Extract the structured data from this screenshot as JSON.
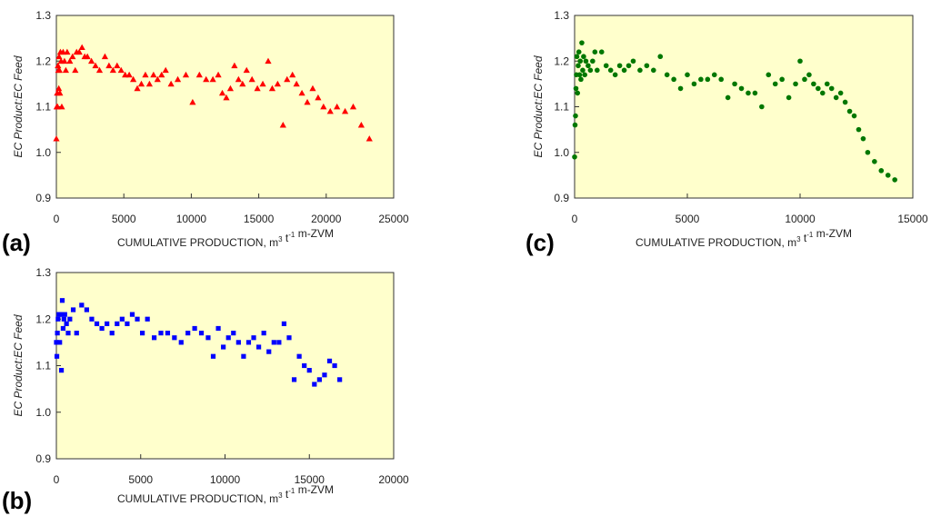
{
  "colors": {
    "plot_bg": "#ffffcc",
    "axis": "#333333"
  },
  "chart_data": [
    {
      "id": "a",
      "type": "scatter",
      "panel_label": "(a)",
      "xlabel": "CUMULATIVE PRODUCTION, m",
      "xlabel_sup1": "3",
      "xlabel_mid": " t",
      "xlabel_sup2": "-1",
      "xlabel_end": " m-ZVM",
      "ylabel": "EC Product:EC Feed",
      "xlim": [
        0,
        25000
      ],
      "ylim": [
        0.9,
        1.3
      ],
      "xticks": [
        0,
        5000,
        10000,
        15000,
        20000,
        25000
      ],
      "yticks": [
        0.9,
        1.0,
        1.1,
        1.2,
        1.3
      ],
      "marker": "triangle",
      "color": "#ff0000",
      "points": [
        [
          0,
          1.03
        ],
        [
          30,
          1.1
        ],
        [
          60,
          1.13
        ],
        [
          90,
          1.1
        ],
        [
          120,
          1.19
        ],
        [
          150,
          1.18
        ],
        [
          180,
          1.14
        ],
        [
          200,
          1.21
        ],
        [
          230,
          1.18
        ],
        [
          260,
          1.13
        ],
        [
          300,
          1.22
        ],
        [
          350,
          1.2
        ],
        [
          400,
          1.1
        ],
        [
          500,
          1.22
        ],
        [
          600,
          1.2
        ],
        [
          700,
          1.18
        ],
        [
          800,
          1.22
        ],
        [
          1000,
          1.2
        ],
        [
          1200,
          1.21
        ],
        [
          1400,
          1.18
        ],
        [
          1500,
          1.22
        ],
        [
          1700,
          1.22
        ],
        [
          1900,
          1.23
        ],
        [
          2100,
          1.21
        ],
        [
          2300,
          1.21
        ],
        [
          2600,
          1.2
        ],
        [
          2900,
          1.19
        ],
        [
          3200,
          1.18
        ],
        [
          3600,
          1.21
        ],
        [
          3900,
          1.19
        ],
        [
          4200,
          1.18
        ],
        [
          4500,
          1.19
        ],
        [
          4800,
          1.18
        ],
        [
          5100,
          1.17
        ],
        [
          5400,
          1.17
        ],
        [
          5700,
          1.16
        ],
        [
          6000,
          1.14
        ],
        [
          6300,
          1.15
        ],
        [
          6600,
          1.17
        ],
        [
          6900,
          1.15
        ],
        [
          7200,
          1.17
        ],
        [
          7500,
          1.16
        ],
        [
          7800,
          1.17
        ],
        [
          8100,
          1.18
        ],
        [
          8500,
          1.15
        ],
        [
          9000,
          1.16
        ],
        [
          9600,
          1.17
        ],
        [
          10100,
          1.11
        ],
        [
          10600,
          1.17
        ],
        [
          11100,
          1.16
        ],
        [
          11600,
          1.16
        ],
        [
          12000,
          1.17
        ],
        [
          12300,
          1.13
        ],
        [
          12600,
          1.12
        ],
        [
          12900,
          1.14
        ],
        [
          13200,
          1.19
        ],
        [
          13500,
          1.16
        ],
        [
          13800,
          1.15
        ],
        [
          14100,
          1.18
        ],
        [
          14500,
          1.16
        ],
        [
          14900,
          1.14
        ],
        [
          15300,
          1.15
        ],
        [
          15700,
          1.2
        ],
        [
          16000,
          1.14
        ],
        [
          16400,
          1.15
        ],
        [
          16800,
          1.06
        ],
        [
          17100,
          1.16
        ],
        [
          17500,
          1.17
        ],
        [
          17800,
          1.15
        ],
        [
          18200,
          1.13
        ],
        [
          18600,
          1.11
        ],
        [
          19000,
          1.14
        ],
        [
          19400,
          1.12
        ],
        [
          19800,
          1.1
        ],
        [
          20300,
          1.09
        ],
        [
          20800,
          1.1
        ],
        [
          21400,
          1.09
        ],
        [
          22000,
          1.1
        ],
        [
          22600,
          1.06
        ],
        [
          23200,
          1.03
        ]
      ]
    },
    {
      "id": "b",
      "type": "scatter",
      "panel_label": "(b)",
      "xlabel": "CUMULATIVE PRODUCTION, m",
      "xlabel_sup1": "3",
      "xlabel_mid": " t",
      "xlabel_sup2": "-1",
      "xlabel_end": " m-ZVM",
      "ylabel": "EC Product:EC Feed",
      "xlim": [
        0,
        20000
      ],
      "ylim": [
        0.9,
        1.3
      ],
      "xticks": [
        0,
        5000,
        10000,
        15000,
        20000
      ],
      "yticks": [
        0.9,
        1.0,
        1.1,
        1.2,
        1.3
      ],
      "marker": "square",
      "color": "#0000ff",
      "points": [
        [
          0,
          1.15
        ],
        [
          30,
          1.12
        ],
        [
          60,
          1.17
        ],
        [
          100,
          1.2
        ],
        [
          150,
          1.21
        ],
        [
          200,
          1.15
        ],
        [
          250,
          1.21
        ],
        [
          300,
          1.09
        ],
        [
          350,
          1.24
        ],
        [
          400,
          1.18
        ],
        [
          450,
          1.2
        ],
        [
          500,
          1.21
        ],
        [
          600,
          1.19
        ],
        [
          700,
          1.17
        ],
        [
          800,
          1.2
        ],
        [
          1000,
          1.22
        ],
        [
          1200,
          1.17
        ],
        [
          1500,
          1.23
        ],
        [
          1800,
          1.22
        ],
        [
          2100,
          1.2
        ],
        [
          2400,
          1.19
        ],
        [
          2700,
          1.18
        ],
        [
          3000,
          1.19
        ],
        [
          3300,
          1.17
        ],
        [
          3600,
          1.19
        ],
        [
          3900,
          1.2
        ],
        [
          4200,
          1.19
        ],
        [
          4500,
          1.21
        ],
        [
          4800,
          1.2
        ],
        [
          5100,
          1.17
        ],
        [
          5400,
          1.2
        ],
        [
          5800,
          1.16
        ],
        [
          6200,
          1.17
        ],
        [
          6600,
          1.17
        ],
        [
          7000,
          1.16
        ],
        [
          7400,
          1.15
        ],
        [
          7800,
          1.17
        ],
        [
          8200,
          1.18
        ],
        [
          8600,
          1.17
        ],
        [
          9000,
          1.16
        ],
        [
          9300,
          1.12
        ],
        [
          9600,
          1.18
        ],
        [
          9900,
          1.14
        ],
        [
          10200,
          1.16
        ],
        [
          10500,
          1.17
        ],
        [
          10800,
          1.15
        ],
        [
          11100,
          1.12
        ],
        [
          11400,
          1.15
        ],
        [
          11700,
          1.16
        ],
        [
          12000,
          1.14
        ],
        [
          12300,
          1.17
        ],
        [
          12600,
          1.13
        ],
        [
          12900,
          1.15
        ],
        [
          13200,
          1.15
        ],
        [
          13500,
          1.19
        ],
        [
          13800,
          1.16
        ],
        [
          14100,
          1.07
        ],
        [
          14400,
          1.12
        ],
        [
          14700,
          1.1
        ],
        [
          15000,
          1.09
        ],
        [
          15300,
          1.06
        ],
        [
          15600,
          1.07
        ],
        [
          15900,
          1.08
        ],
        [
          16200,
          1.11
        ],
        [
          16500,
          1.1
        ],
        [
          16800,
          1.07
        ]
      ]
    },
    {
      "id": "c",
      "type": "scatter",
      "panel_label": "(c)",
      "xlabel": "CUMULATIVE PRODUCTION, m",
      "xlabel_sup1": "3",
      "xlabel_mid": " t",
      "xlabel_sup2": "-1",
      "xlabel_end": " m-ZVM",
      "ylabel": "EC Product:EC Feed",
      "xlim": [
        0,
        15000
      ],
      "ylim": [
        0.9,
        1.3
      ],
      "xticks": [
        0,
        5000,
        10000,
        15000
      ],
      "yticks": [
        0.9,
        1.0,
        1.1,
        1.2,
        1.3
      ],
      "marker": "circle",
      "color": "#007700",
      "points": [
        [
          0,
          0.99
        ],
        [
          20,
          1.06
        ],
        [
          40,
          1.08
        ],
        [
          60,
          1.14
        ],
        [
          80,
          1.17
        ],
        [
          100,
          1.21
        ],
        [
          130,
          1.13
        ],
        [
          160,
          1.19
        ],
        [
          190,
          1.22
        ],
        [
          220,
          1.17
        ],
        [
          250,
          1.2
        ],
        [
          280,
          1.16
        ],
        [
          320,
          1.24
        ],
        [
          360,
          1.18
        ],
        [
          400,
          1.21
        ],
        [
          450,
          1.17
        ],
        [
          500,
          1.2
        ],
        [
          600,
          1.19
        ],
        [
          700,
          1.18
        ],
        [
          800,
          1.2
        ],
        [
          900,
          1.22
        ],
        [
          1000,
          1.18
        ],
        [
          1200,
          1.22
        ],
        [
          1400,
          1.19
        ],
        [
          1600,
          1.18
        ],
        [
          1800,
          1.17
        ],
        [
          2000,
          1.19
        ],
        [
          2200,
          1.18
        ],
        [
          2400,
          1.19
        ],
        [
          2600,
          1.2
        ],
        [
          2900,
          1.18
        ],
        [
          3200,
          1.19
        ],
        [
          3500,
          1.18
        ],
        [
          3800,
          1.21
        ],
        [
          4100,
          1.17
        ],
        [
          4400,
          1.16
        ],
        [
          4700,
          1.14
        ],
        [
          5000,
          1.17
        ],
        [
          5300,
          1.15
        ],
        [
          5600,
          1.16
        ],
        [
          5900,
          1.16
        ],
        [
          6200,
          1.17
        ],
        [
          6500,
          1.16
        ],
        [
          6800,
          1.12
        ],
        [
          7100,
          1.15
        ],
        [
          7400,
          1.14
        ],
        [
          7700,
          1.13
        ],
        [
          8000,
          1.13
        ],
        [
          8300,
          1.1
        ],
        [
          8600,
          1.17
        ],
        [
          8900,
          1.15
        ],
        [
          9200,
          1.16
        ],
        [
          9500,
          1.12
        ],
        [
          9800,
          1.15
        ],
        [
          10000,
          1.2
        ],
        [
          10200,
          1.16
        ],
        [
          10400,
          1.17
        ],
        [
          10600,
          1.15
        ],
        [
          10800,
          1.14
        ],
        [
          11000,
          1.13
        ],
        [
          11200,
          1.15
        ],
        [
          11400,
          1.14
        ],
        [
          11600,
          1.12
        ],
        [
          11800,
          1.13
        ],
        [
          12000,
          1.11
        ],
        [
          12200,
          1.09
        ],
        [
          12400,
          1.08
        ],
        [
          12600,
          1.05
        ],
        [
          12800,
          1.03
        ],
        [
          13000,
          1.0
        ],
        [
          13300,
          0.98
        ],
        [
          13600,
          0.96
        ],
        [
          13900,
          0.95
        ],
        [
          14200,
          0.94
        ]
      ]
    }
  ]
}
